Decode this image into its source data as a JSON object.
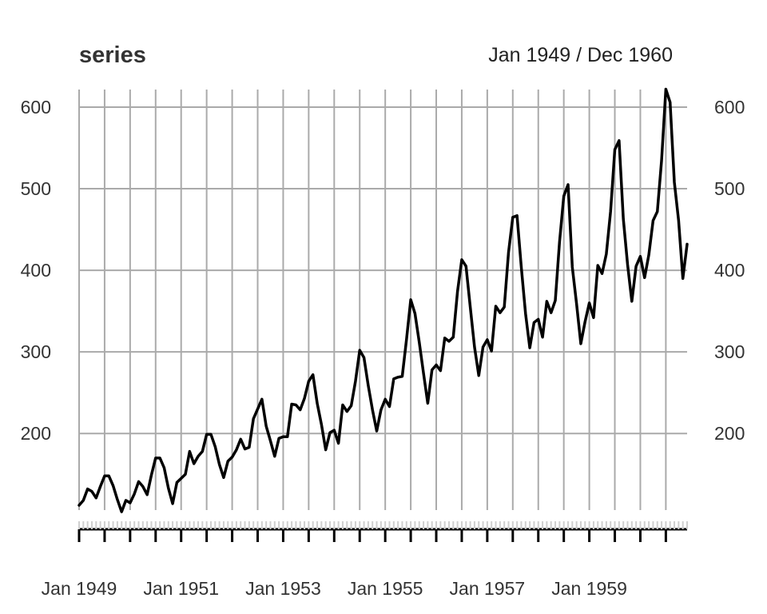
{
  "chart_data": {
    "type": "line",
    "title": "series",
    "subtitle": "Jan 1949 / Dec 1960",
    "xlabel": "",
    "ylabel": "",
    "x_start": "Jan 1949",
    "x_end": "Dec 1960",
    "frequency": "monthly",
    "x_tick_labels": [
      "Jan 1949",
      "Jan 1951",
      "Jan 1953",
      "Jan 1955",
      "Jan 1957",
      "Jan 1959"
    ],
    "y_ticks": [
      200,
      300,
      400,
      500,
      600
    ],
    "ylim": [
      90,
      622
    ],
    "grid": true,
    "grid_interval_months": 6,
    "line_color": "#000000",
    "grid_color": "#aaaaaa",
    "series": [
      {
        "values": [
          112,
          118,
          132,
          129,
          121,
          135,
          148,
          148,
          136,
          119,
          104,
          118,
          115,
          126,
          141,
          135,
          125,
          149,
          170,
          170,
          158,
          133,
          114,
          140,
          145,
          150,
          178,
          163,
          172,
          178,
          199,
          199,
          184,
          162,
          146,
          166,
          171,
          180,
          193,
          181,
          183,
          218,
          230,
          242,
          209,
          191,
          172,
          194,
          196,
          196,
          236,
          235,
          229,
          243,
          264,
          272,
          237,
          211,
          180,
          201,
          204,
          188,
          235,
          227,
          234,
          264,
          302,
          293,
          259,
          229,
          203,
          229,
          242,
          233,
          267,
          269,
          270,
          315,
          364,
          347,
          312,
          274,
          237,
          278,
          284,
          277,
          317,
          313,
          318,
          374,
          413,
          405,
          355,
          306,
          271,
          306,
          315,
          301,
          356,
          348,
          355,
          422,
          465,
          467,
          404,
          347,
          305,
          336,
          340,
          318,
          362,
          348,
          363,
          435,
          491,
          505,
          404,
          359,
          310,
          337,
          360,
          342,
          406,
          396,
          420,
          472,
          548,
          559,
          463,
          407,
          362,
          405,
          417,
          391,
          419,
          461,
          472,
          535,
          622,
          606,
          508,
          461,
          390,
          432
        ]
      }
    ]
  }
}
